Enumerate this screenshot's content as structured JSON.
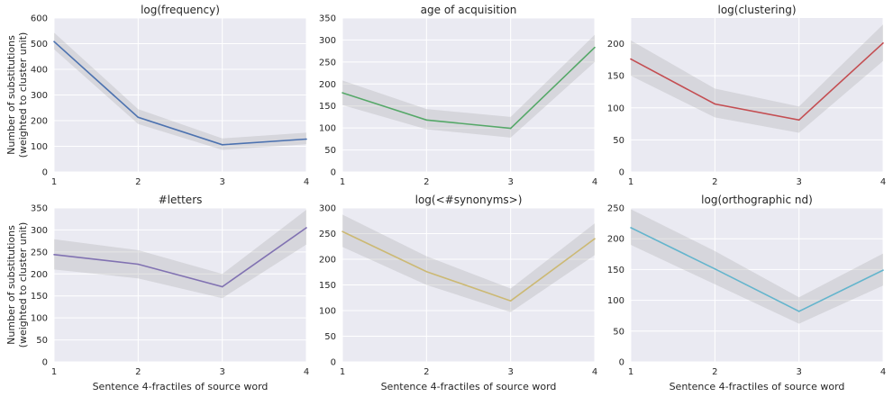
{
  "chart_data": [
    {
      "type": "line",
      "title": "log(frequency)",
      "x": [
        1,
        2,
        3,
        4
      ],
      "series": [
        {
          "values": [
            508,
            213,
            106,
            128
          ],
          "ci_low": [
            478,
            187,
            86,
            108
          ],
          "ci_high": [
            543,
            245,
            131,
            153
          ],
          "color": "#4c72b0"
        }
      ],
      "xlim": [
        1,
        4
      ],
      "ylim": [
        0,
        600
      ],
      "xticks": [
        "1",
        "2",
        "3",
        "4"
      ],
      "yticks": [
        "0",
        "100",
        "200",
        "300",
        "400",
        "500",
        "600"
      ],
      "xlabel": "",
      "ylabel": "Number of substitutions",
      "ylabel2": "(weighted to cluster unit)",
      "grid": true
    },
    {
      "type": "line",
      "title": "age of acquisition",
      "x": [
        1,
        2,
        3,
        4
      ],
      "series": [
        {
          "values": [
            180,
            118,
            99,
            283
          ],
          "ci_low": [
            152,
            97,
            78,
            250
          ],
          "ci_high": [
            208,
            143,
            125,
            312
          ],
          "color": "#55a868"
        }
      ],
      "xlim": [
        1,
        4
      ],
      "ylim": [
        0,
        350
      ],
      "xticks": [
        "1",
        "2",
        "3",
        "4"
      ],
      "yticks": [
        "0",
        "50",
        "100",
        "150",
        "200",
        "250",
        "300",
        "350"
      ],
      "xlabel": "",
      "ylabel": "",
      "ylabel2": "",
      "grid": true
    },
    {
      "type": "line",
      "title": "log(clustering)",
      "x": [
        1,
        2,
        3,
        4
      ],
      "series": [
        {
          "values": [
            176,
            106,
            81,
            201
          ],
          "ci_low": [
            150,
            85,
            61,
            173
          ],
          "ci_high": [
            205,
            130,
            102,
            230
          ],
          "color": "#c44e52"
        }
      ],
      "xlim": [
        1,
        4
      ],
      "ylim": [
        0,
        240
      ],
      "xticks": [
        "1",
        "2",
        "3",
        "4"
      ],
      "yticks": [
        "0",
        "50",
        "100",
        "150",
        "200"
      ],
      "xlabel": "",
      "ylabel": "",
      "ylabel2": "",
      "grid": true
    },
    {
      "type": "line",
      "title": "#letters",
      "x": [
        1,
        2,
        3,
        4
      ],
      "series": [
        {
          "values": [
            244,
            222,
            171,
            305
          ],
          "ci_low": [
            210,
            190,
            145,
            267
          ],
          "ci_high": [
            279,
            254,
            200,
            346
          ],
          "color": "#8172b2"
        }
      ],
      "xlim": [
        1,
        4
      ],
      "ylim": [
        0,
        350
      ],
      "xticks": [
        "1",
        "2",
        "3",
        "4"
      ],
      "yticks": [
        "0",
        "50",
        "100",
        "150",
        "200",
        "250",
        "300",
        "350"
      ],
      "xlabel": "Sentence 4-fractiles of source word",
      "ylabel": "Number of substitutions",
      "ylabel2": "(weighted to cluster unit)",
      "grid": true
    },
    {
      "type": "line",
      "title": "log(<#synonyms>)",
      "x": [
        1,
        2,
        3,
        4
      ],
      "series": [
        {
          "values": [
            254,
            176,
            119,
            240
          ],
          "ci_low": [
            224,
            150,
            97,
            208
          ],
          "ci_high": [
            287,
            206,
            143,
            270
          ],
          "color": "#ccb974"
        }
      ],
      "xlim": [
        1,
        4
      ],
      "ylim": [
        0,
        300
      ],
      "xticks": [
        "1",
        "2",
        "3",
        "4"
      ],
      "yticks": [
        "0",
        "50",
        "100",
        "150",
        "200",
        "250",
        "300"
      ],
      "xlabel": "Sentence 4-fractiles of source word",
      "ylabel": "",
      "ylabel2": "",
      "grid": true
    },
    {
      "type": "line",
      "title": "log(orthographic nd)",
      "x": [
        1,
        2,
        3,
        4
      ],
      "series": [
        {
          "values": [
            218,
            151,
            82,
            149
          ],
          "ci_low": [
            190,
            126,
            62,
            124
          ],
          "ci_high": [
            248,
            180,
            105,
            176
          ],
          "color": "#64b5cd"
        }
      ],
      "xlim": [
        1,
        4
      ],
      "ylim": [
        0,
        250
      ],
      "xticks": [
        "1",
        "2",
        "3",
        "4"
      ],
      "yticks": [
        "0",
        "50",
        "100",
        "150",
        "200",
        "250"
      ],
      "xlabel": "Sentence 4-fractiles of source word",
      "ylabel": "",
      "ylabel2": "",
      "grid": true
    }
  ]
}
